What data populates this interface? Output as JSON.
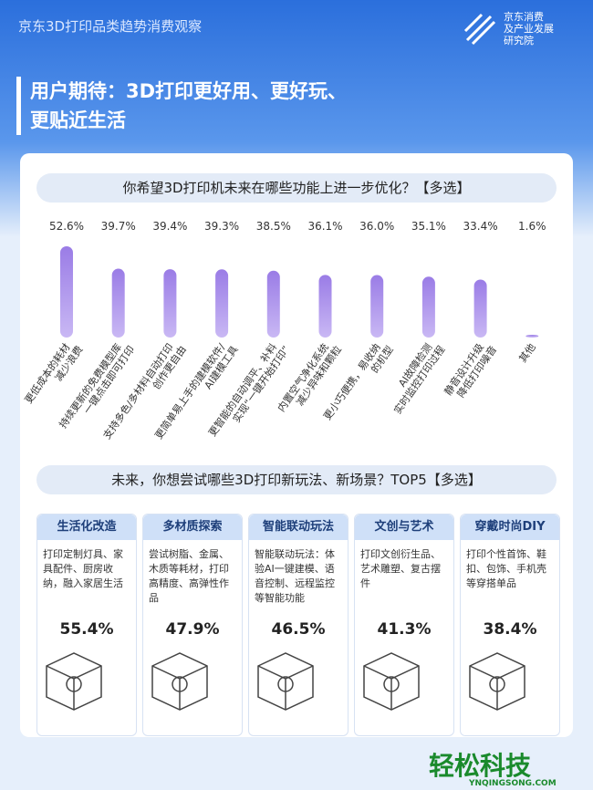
{
  "header": {
    "report": "京东3D打印品类趋势消费观察",
    "logo": [
      "京东消费",
      "及产业发展",
      "研究院"
    ]
  },
  "title": [
    "用户期待：3D打印更好用、更好玩、",
    "更贴近生活"
  ],
  "chart_data": {
    "type": "bar",
    "title": "你希望3D打印机未来在哪些功能上进一步优化？【多选】",
    "color": "#9a7ce6",
    "categories": [
      "更低成本的耗材\n减少浪费",
      "持续更新的免费模型库\n一键点击即可打印",
      "支持多色/多材料自动打印\n创作更自由",
      "更简单易上手的建模软件/\nAI建模工具",
      "更智能的自动调平、补料\n实现“一键开始打印”",
      "内置空气净化系统\n减少异味和颗粒",
      "更小巧便携，易收纳\n的机型",
      "AI故障检测\n实时监控打印过程",
      "静音设计升级\n降低打印噪音",
      "其他"
    ],
    "values": [
      52.6,
      39.7,
      39.4,
      39.3,
      38.5,
      36.1,
      36.0,
      35.1,
      33.4,
      1.6
    ],
    "value_labels": [
      "52.6%",
      "39.7%",
      "39.4%",
      "39.3%",
      "38.5%",
      "36.1%",
      "36.0%",
      "35.1%",
      "33.4%",
      "1.6%"
    ]
  },
  "section2": {
    "title": "未来，你想尝试哪些3D打印新玩法、新场景？TOP5【多选】",
    "cards": [
      {
        "title": "生活化改造",
        "text": "打印定制灯具、家具配件、厨房收纳，融入家居生活",
        "value": "55.4%"
      },
      {
        "title": "多材质探索",
        "text": "尝试树脂、金属、木质等耗材，打印高精度、高弹性作品",
        "value": "47.9%"
      },
      {
        "title": "智能联动玩法",
        "text": "智能联动玩法：体验AI一键建模、语音控制、远程监控等智能功能",
        "value": "46.5%"
      },
      {
        "title": "文创与艺术",
        "text": "打印文创衍生品、艺术雕塑、复古摆件",
        "value": "41.3%"
      },
      {
        "title": "穿戴时尚DIY",
        "text": "打印个性首饰、鞋扣、包饰、手机壳等穿搭单品",
        "value": "38.4%"
      }
    ]
  },
  "watermark": {
    "name": "轻松科技",
    "site": "YNQINGSONG.COM"
  }
}
